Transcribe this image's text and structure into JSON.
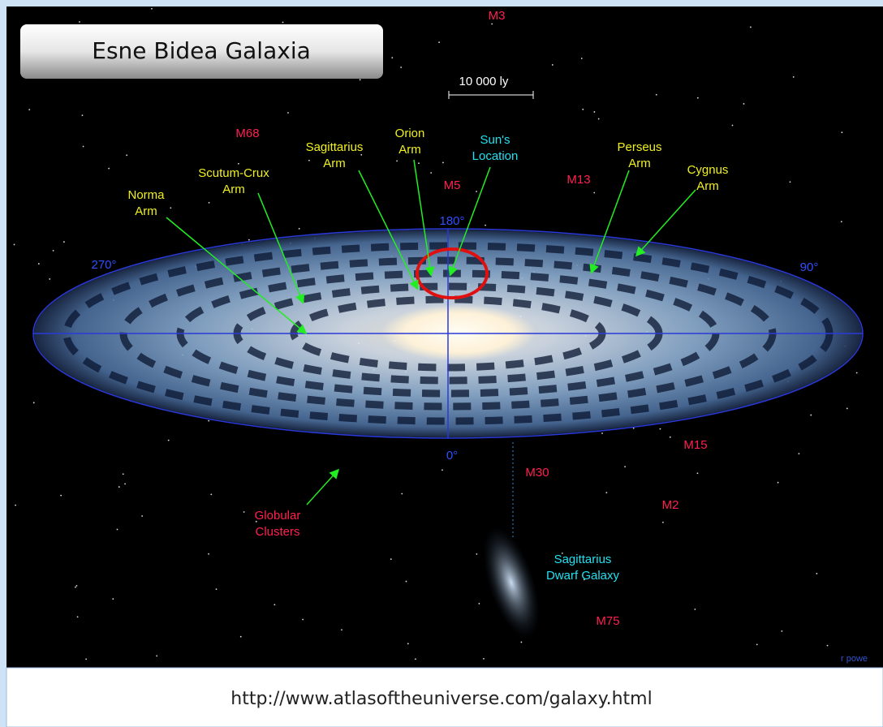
{
  "title": "Esne Bidea Galaxia",
  "scale": "10 000 ly",
  "arms": [
    {
      "lines": [
        "Norma",
        "Arm"
      ]
    },
    {
      "lines": [
        "Scutum-Crux",
        "Arm"
      ]
    },
    {
      "lines": [
        "Sagittarius",
        "Arm"
      ]
    },
    {
      "lines": [
        "Orion",
        "Arm"
      ]
    },
    {
      "lines": [
        "Perseus",
        "Arm"
      ]
    },
    {
      "lines": [
        "Cygnus",
        "Arm"
      ]
    }
  ],
  "locations": [
    {
      "lines": [
        "Sun's",
        "Location"
      ]
    },
    {
      "lines": [
        "Sagittarius",
        "Dwarf Galaxy"
      ]
    }
  ],
  "globular_clusters": {
    "lines": [
      "Globular",
      "Clusters"
    ]
  },
  "clusters": [
    "M3",
    "M68",
    "M5",
    "M13",
    "M15",
    "M30",
    "M2",
    "M75"
  ],
  "angles": [
    "180°",
    "90°",
    "270°",
    "0°"
  ],
  "credit": "r powe",
  "caption": "http://www.atlasoftheuniverse.com/galaxy.html"
}
